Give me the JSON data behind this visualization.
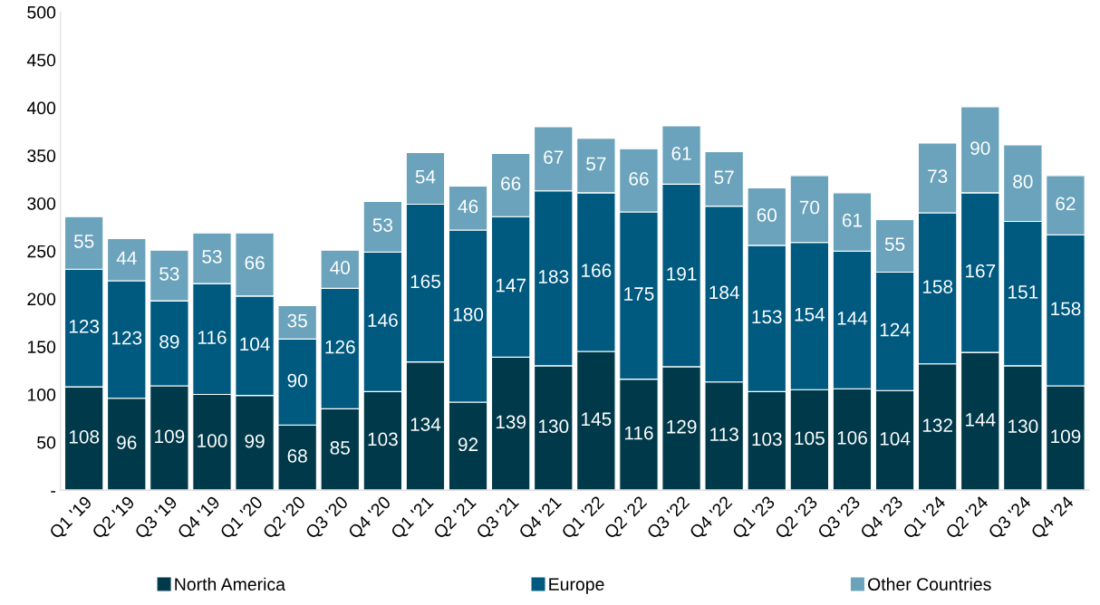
{
  "chart_data": {
    "type": "bar",
    "stacked": true,
    "categories": [
      "Q1 '19",
      "Q2 '19",
      "Q3 '19",
      "Q4 '19",
      "Q1 '20",
      "Q2 '20",
      "Q3 '20",
      "Q4 '20",
      "Q1 '21",
      "Q2 '21",
      "Q3 '21",
      "Q4 '21",
      "Q1 '22",
      "Q2 '22",
      "Q3 '22",
      "Q4 '22",
      "Q1 '23",
      "Q2 '23",
      "Q3 '23",
      "Q4 '23",
      "Q1 '24",
      "Q2 '24",
      "Q3 '24",
      "Q4 '24"
    ],
    "series": [
      {
        "name": "North America",
        "color": "#003a4a",
        "values": [
          108,
          96,
          109,
          100,
          99,
          68,
          85,
          103,
          134,
          92,
          139,
          130,
          145,
          116,
          129,
          113,
          103,
          105,
          106,
          104,
          132,
          144,
          130,
          109
        ]
      },
      {
        "name": "Europe",
        "color": "#005a80",
        "values": [
          123,
          123,
          89,
          116,
          104,
          90,
          126,
          146,
          165,
          180,
          147,
          183,
          166,
          175,
          191,
          184,
          153,
          154,
          144,
          124,
          158,
          167,
          151,
          158
        ]
      },
      {
        "name": "Other Countries",
        "color": "#6aa3bb",
        "values": [
          55,
          44,
          53,
          53,
          66,
          35,
          40,
          53,
          54,
          46,
          66,
          67,
          57,
          66,
          61,
          57,
          60,
          70,
          61,
          55,
          73,
          90,
          80,
          62
        ]
      }
    ],
    "ylim": [
      0,
      500
    ],
    "yticks": [
      {
        "value": 0,
        "label": "-"
      },
      50,
      100,
      150,
      200,
      250,
      300,
      350,
      400,
      450,
      500
    ],
    "data_labels": true,
    "grid": false,
    "legend": "bottom"
  }
}
